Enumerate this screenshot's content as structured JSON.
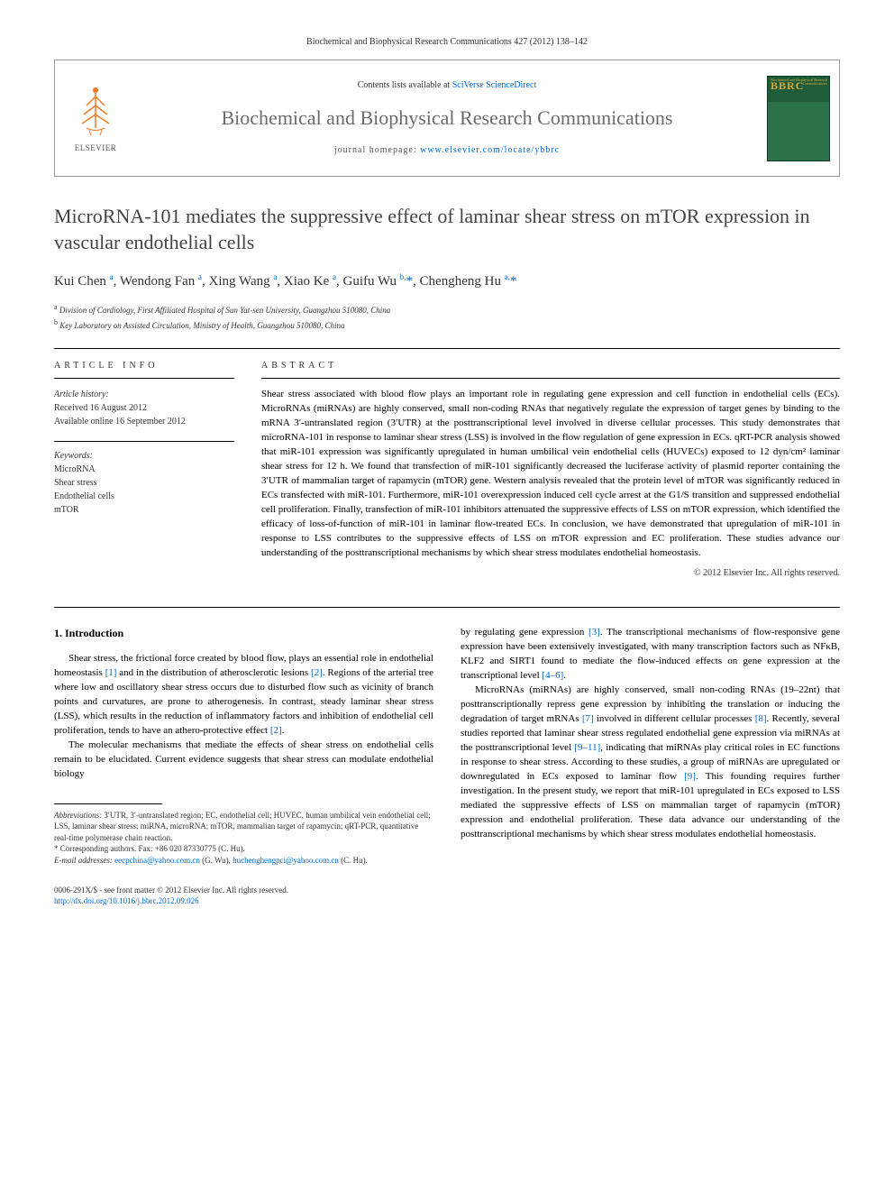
{
  "citation": "Biochemical and Biophysical Research Communications 427 (2012) 138–142",
  "header": {
    "contents_prefix": "Contents lists available at ",
    "contents_link": "SciVerse ScienceDirect",
    "journal_title": "Biochemical and Biophysical Research Communications",
    "homepage_prefix": "journal homepage: ",
    "homepage_url": "www.elsevier.com/locate/ybbrc",
    "elsevier_label": "ELSEVIER",
    "cover_acronym": "BBRC",
    "cover_subtitle": "Biochemical and Biophysical Research Communications"
  },
  "title": "MicroRNA-101 mediates the suppressive effect of laminar shear stress on mTOR expression in vascular endothelial cells",
  "authors_html": "Kui Chen <sup>a</sup>, Wendong Fan <sup>a</sup>, Xing Wang <sup>a</sup>, Xiao Ke <sup>a</sup>, Guifu Wu <sup>b,</sup><span class='star'>*</span>, Chengheng Hu <sup>a,</sup><span class='star'>*</span>",
  "affiliations": [
    "a Division of Cardiology, First Affiliated Hospital of Sun Yat-sen University, Guangzhou 510080, China",
    "b Key Laboratory on Assisted Circulation, Ministry of Health, Guangzhou 510080, China"
  ],
  "info": {
    "header": "ARTICLE INFO",
    "history_label": "Article history:",
    "received": "Received 16 August 2012",
    "available": "Available online 16 September 2012",
    "keywords_label": "Keywords:",
    "keywords": [
      "MicroRNA",
      "Shear stress",
      "Endothelial cells",
      "mTOR"
    ]
  },
  "abstract": {
    "header": "ABSTRACT",
    "text": "Shear stress associated with blood flow plays an important role in regulating gene expression and cell function in endothelial cells (ECs). MicroRNAs (miRNAs) are highly conserved, small non-coding RNAs that negatively regulate the expression of target genes by binding to the mRNA 3′-untranslated region (3′UTR) at the posttranscriptional level involved in diverse cellular processes. This study demonstrates that microRNA-101 in response to laminar shear stress (LSS) is involved in the flow regulation of gene expression in ECs. qRT-PCR analysis showed that miR-101 expression was significantly upregulated in human umbilical vein endothelial cells (HUVECs) exposed to 12 dyn/cm² laminar shear stress for 12 h. We found that transfection of miR-101 significantly decreased the luciferase activity of plasmid reporter containing the 3′UTR of mammalian target of rapamycin (mTOR) gene. Western analysis revealed that the protein level of mTOR was significantly reduced in ECs transfected with miR-101. Furthermore, miR-101 overexpression induced cell cycle arrest at the G1/S transition and suppressed endothelial cell proliferation. Finally, transfection of miR-101 inhibitors attenuated the suppressive effects of LSS on mTOR expression, which identified the efficacy of loss-of-function of miR-101 in laminar flow-treated ECs. In conclusion, we have demonstrated that upregulation of miR-101 in response to LSS contributes to the suppressive effects of LSS on mTOR expression and EC proliferation. These studies advance our understanding of the posttranscriptional mechanisms by which shear stress modulates endothelial homeostasis.",
    "copyright": "© 2012 Elsevier Inc. All rights reserved."
  },
  "body": {
    "intro_heading": "1. Introduction",
    "col1_p1": "Shear stress, the frictional force created by blood flow, plays an essential role in endothelial homeostasis [1] and in the distribution of atherosclerotic lesions [2]. Regions of the arterial tree where low and oscillatory shear stress occurs due to disturbed flow such as vicinity of branch points and curvatures, are prone to atherogenesis. In contrast, steady laminar shear stress (LSS), which results in the reduction of inflammatory factors and inhibition of endothelial cell proliferation, tends to have an athero-protective effect [2].",
    "col1_p2": "The molecular mechanisms that mediate the effects of shear stress on endothelial cells remain to be elucidated. Current evidence suggests that shear stress can modulate endothelial biology",
    "col2_p1": "by regulating gene expression [3]. The transcriptional mechanisms of flow-responsive gene expression have been extensively investigated, with many transcription factors such as NFκB, KLF2 and SIRT1 found to mediate the flow-induced effects on gene expression at the transcriptional level [4–6].",
    "col2_p2": "MicroRNAs (miRNAs) are highly conserved, small non-coding RNAs (19–22nt) that posttranscriptionally repress gene expression by inhibiting the translation or inducing the degradation of target mRNAs [7] involved in different cellular processes [8]. Recently, several studies reported that laminar shear stress regulated endothelial gene expression via miRNAs at the posttranscriptional level [9–11], indicating that miRNAs play critical roles in EC functions in response to shear stress. According to these studies, a group of miRNAs are upregulated or downregulated in ECs exposed to laminar flow [9]. This founding requires further investigation. In the present study, we report that miR-101 upregulated in ECs exposed to LSS mediated the suppressive effects of LSS on mammalian target of rapamycin (mTOR) expression and endothelial proliferation. These data advance our understanding of the posttranscriptional mechanisms by which shear stress modulates endothelial homeostasis."
  },
  "footnotes": {
    "abbrev_label": "Abbreviations:",
    "abbrev_text": " 3′UTR, 3′-untranslated region; EC, endothelial cell; HUVEC, human umbilical vein endothelial cell; LSS, laminar shear stress; miRNA, microRNA; mTOR, mammalian target of rapamycin; qRT-PCR, quantitative real-time polymerase chain reaction.",
    "corresp": "* Corresponding authors. Fax: +86 020 87330775 (C. Hu).",
    "email_label": "E-mail addresses:",
    "email1": "eecpchina@yahoo.com.cn",
    "email1_who": " (G. Wu), ",
    "email2": "huchenghengpci@yahoo.com.cn",
    "email2_who": " (C. Hu)."
  },
  "footer": {
    "issn": "0006-291X/$ - see front matter © 2012 Elsevier Inc. All rights reserved.",
    "doi": "http://dx.doi.org/10.1016/j.bbrc.2012.09.026"
  },
  "colors": {
    "link": "#0066cc",
    "elsevier_orange": "#f47920",
    "cover_green": "#1e5c3a",
    "cover_gold": "#d4a83a",
    "journal_gray": "#6b6b6b"
  }
}
